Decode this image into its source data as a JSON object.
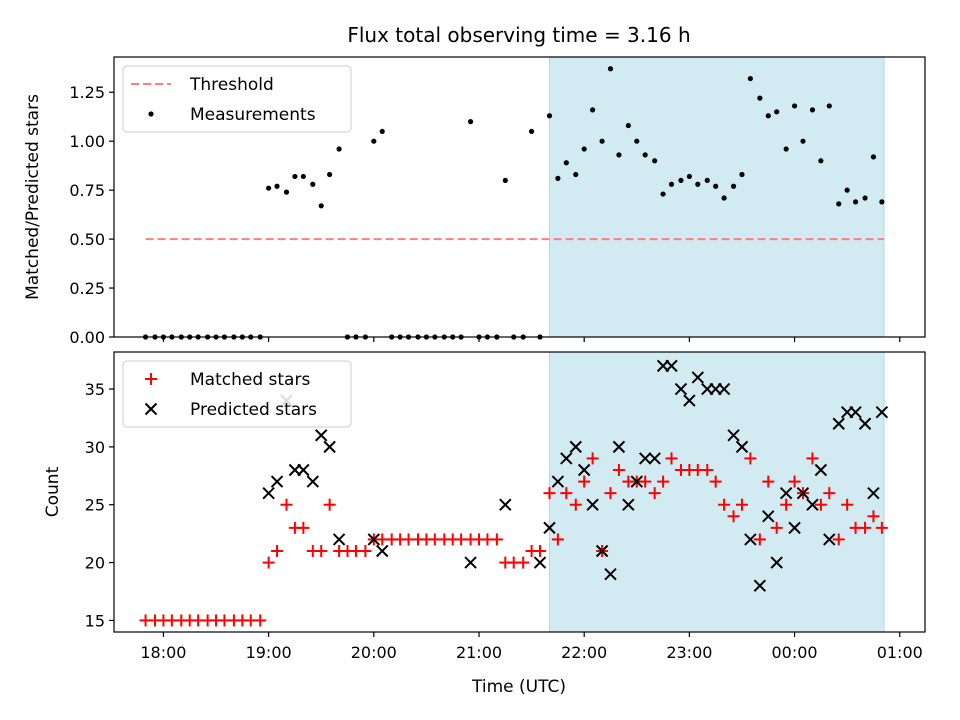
{
  "title": "Flux total observing time = 3.16 h",
  "xlabel": "Time (UTC)",
  "x_ticks": [
    "18:00",
    "19:00",
    "20:00",
    "21:00",
    "22:00",
    "23:00",
    "00:00",
    "01:00"
  ],
  "shaded_interval": {
    "start": 21.67,
    "end": 24.85,
    "color": "#add8e6"
  },
  "chart_data": [
    {
      "type": "scatter",
      "ylabel": "Matched/Predicted stars",
      "ylim": [
        0,
        1.43
      ],
      "yticks": [
        "0.00",
        "0.25",
        "0.50",
        "0.75",
        "1.00",
        "1.25"
      ],
      "legend": {
        "placement": "top-left",
        "entries": [
          "Threshold",
          "Measurements"
        ]
      },
      "threshold": {
        "name": "Threshold",
        "y": 0.5,
        "x_start": 17.83,
        "x_end": 24.85,
        "color": "#ff7f7f"
      },
      "series": [
        {
          "name": "Measurements",
          "color": "#000000",
          "points": [
            [
              17.83,
              0
            ],
            [
              17.92,
              0
            ],
            [
              18.0,
              0
            ],
            [
              18.08,
              0
            ],
            [
              18.17,
              0
            ],
            [
              18.25,
              0
            ],
            [
              18.33,
              0
            ],
            [
              18.42,
              0
            ],
            [
              18.5,
              0
            ],
            [
              18.58,
              0
            ],
            [
              18.67,
              0
            ],
            [
              18.75,
              0
            ],
            [
              18.83,
              0
            ],
            [
              18.92,
              0
            ],
            [
              19.0,
              0.76
            ],
            [
              19.08,
              0.77
            ],
            [
              19.17,
              0.74
            ],
            [
              19.25,
              0.82
            ],
            [
              19.33,
              0.82
            ],
            [
              19.42,
              0.78
            ],
            [
              19.5,
              0.67
            ],
            [
              19.58,
              0.83
            ],
            [
              19.67,
              0.96
            ],
            [
              19.75,
              0
            ],
            [
              19.83,
              0
            ],
            [
              19.92,
              0
            ],
            [
              20.0,
              1.0
            ],
            [
              20.08,
              1.05
            ],
            [
              20.17,
              0
            ],
            [
              20.25,
              0
            ],
            [
              20.33,
              0
            ],
            [
              20.42,
              0
            ],
            [
              20.5,
              0
            ],
            [
              20.58,
              0
            ],
            [
              20.67,
              0
            ],
            [
              20.75,
              0
            ],
            [
              20.83,
              0
            ],
            [
              20.92,
              1.1
            ],
            [
              21.0,
              0
            ],
            [
              21.08,
              0
            ],
            [
              21.17,
              0
            ],
            [
              21.25,
              0.8
            ],
            [
              21.33,
              0
            ],
            [
              21.42,
              0
            ],
            [
              21.5,
              1.05
            ],
            [
              21.58,
              0
            ],
            [
              21.67,
              1.13
            ],
            [
              21.75,
              0.81
            ],
            [
              21.83,
              0.89
            ],
            [
              21.92,
              0.83
            ],
            [
              22.0,
              0.96
            ],
            [
              22.08,
              1.16
            ],
            [
              22.17,
              1.0
            ],
            [
              22.25,
              1.37
            ],
            [
              22.33,
              0.93
            ],
            [
              22.42,
              1.08
            ],
            [
              22.5,
              1.0
            ],
            [
              22.58,
              0.93
            ],
            [
              22.67,
              0.9
            ],
            [
              22.75,
              0.73
            ],
            [
              22.83,
              0.78
            ],
            [
              22.92,
              0.8
            ],
            [
              23.0,
              0.82
            ],
            [
              23.08,
              0.78
            ],
            [
              23.17,
              0.8
            ],
            [
              23.25,
              0.77
            ],
            [
              23.33,
              0.71
            ],
            [
              23.42,
              0.77
            ],
            [
              23.5,
              0.83
            ],
            [
              23.58,
              1.32
            ],
            [
              23.67,
              1.22
            ],
            [
              23.75,
              1.13
            ],
            [
              23.83,
              1.15
            ],
            [
              23.92,
              0.96
            ],
            [
              24.0,
              1.18
            ],
            [
              24.08,
              1.0
            ],
            [
              24.17,
              1.16
            ],
            [
              24.25,
              0.9
            ],
            [
              24.33,
              1.18
            ],
            [
              24.42,
              0.68
            ],
            [
              24.5,
              0.75
            ],
            [
              24.58,
              0.69
            ],
            [
              24.67,
              0.71
            ],
            [
              24.75,
              0.92
            ],
            [
              24.83,
              0.69
            ]
          ]
        }
      ]
    },
    {
      "type": "scatter",
      "ylabel": "Count",
      "ylim": [
        14,
        38.2
      ],
      "yticks": [
        "15",
        "20",
        "25",
        "30",
        "35"
      ],
      "legend": {
        "placement": "top-left",
        "entries": [
          "Matched stars",
          "Predicted stars"
        ]
      },
      "series": [
        {
          "name": "Matched stars",
          "color": "#ff0000",
          "marker": "plus",
          "points": [
            [
              17.83,
              15
            ],
            [
              17.92,
              15
            ],
            [
              18.0,
              15
            ],
            [
              18.08,
              15
            ],
            [
              18.17,
              15
            ],
            [
              18.25,
              15
            ],
            [
              18.33,
              15
            ],
            [
              18.42,
              15
            ],
            [
              18.5,
              15
            ],
            [
              18.58,
              15
            ],
            [
              18.67,
              15
            ],
            [
              18.75,
              15
            ],
            [
              18.83,
              15
            ],
            [
              18.92,
              15
            ],
            [
              19.0,
              20
            ],
            [
              19.08,
              21
            ],
            [
              19.17,
              25
            ],
            [
              19.25,
              23
            ],
            [
              19.33,
              23
            ],
            [
              19.42,
              21
            ],
            [
              19.5,
              21
            ],
            [
              19.58,
              25
            ],
            [
              19.67,
              21
            ],
            [
              19.75,
              21
            ],
            [
              19.83,
              21
            ],
            [
              19.92,
              21
            ],
            [
              20.0,
              22
            ],
            [
              20.08,
              22
            ],
            [
              20.17,
              22
            ],
            [
              20.25,
              22
            ],
            [
              20.33,
              22
            ],
            [
              20.42,
              22
            ],
            [
              20.5,
              22
            ],
            [
              20.58,
              22
            ],
            [
              20.67,
              22
            ],
            [
              20.75,
              22
            ],
            [
              20.83,
              22
            ],
            [
              20.92,
              22
            ],
            [
              21.0,
              22
            ],
            [
              21.08,
              22
            ],
            [
              21.17,
              22
            ],
            [
              21.25,
              20
            ],
            [
              21.33,
              20
            ],
            [
              21.42,
              20
            ],
            [
              21.5,
              21
            ],
            [
              21.58,
              21
            ],
            [
              21.67,
              26
            ],
            [
              21.75,
              22
            ],
            [
              21.83,
              26
            ],
            [
              21.92,
              25
            ],
            [
              22.0,
              27
            ],
            [
              22.08,
              29
            ],
            [
              22.17,
              21
            ],
            [
              22.25,
              26
            ],
            [
              22.33,
              28
            ],
            [
              22.42,
              27
            ],
            [
              22.5,
              27
            ],
            [
              22.58,
              27
            ],
            [
              22.67,
              26
            ],
            [
              22.75,
              27
            ],
            [
              22.83,
              29
            ],
            [
              22.92,
              28
            ],
            [
              23.0,
              28
            ],
            [
              23.08,
              28
            ],
            [
              23.17,
              28
            ],
            [
              23.25,
              27
            ],
            [
              23.33,
              25
            ],
            [
              23.42,
              24
            ],
            [
              23.5,
              25
            ],
            [
              23.58,
              29
            ],
            [
              23.67,
              22
            ],
            [
              23.75,
              27
            ],
            [
              23.83,
              23
            ],
            [
              23.92,
              25
            ],
            [
              24.0,
              27
            ],
            [
              24.08,
              26
            ],
            [
              24.17,
              29
            ],
            [
              24.25,
              25
            ],
            [
              24.33,
              26
            ],
            [
              24.42,
              22
            ],
            [
              24.5,
              25
            ],
            [
              24.58,
              23
            ],
            [
              24.67,
              23
            ],
            [
              24.75,
              24
            ],
            [
              24.83,
              23
            ]
          ]
        },
        {
          "name": "Predicted stars",
          "color": "#000000",
          "marker": "x",
          "points": [
            [
              19.0,
              26
            ],
            [
              19.08,
              27
            ],
            [
              19.17,
              34
            ],
            [
              19.25,
              28
            ],
            [
              19.33,
              28
            ],
            [
              19.42,
              27
            ],
            [
              19.5,
              31
            ],
            [
              19.58,
              30
            ],
            [
              19.67,
              22
            ],
            [
              20.0,
              22
            ],
            [
              20.08,
              21
            ],
            [
              20.92,
              20
            ],
            [
              21.25,
              25
            ],
            [
              21.58,
              20
            ],
            [
              21.67,
              23
            ],
            [
              21.75,
              27
            ],
            [
              21.83,
              29
            ],
            [
              21.92,
              30
            ],
            [
              22.0,
              28
            ],
            [
              22.08,
              25
            ],
            [
              22.17,
              21
            ],
            [
              22.25,
              19
            ],
            [
              22.33,
              30
            ],
            [
              22.42,
              25
            ],
            [
              22.5,
              27
            ],
            [
              22.58,
              29
            ],
            [
              22.67,
              29
            ],
            [
              22.75,
              37
            ],
            [
              22.83,
              37
            ],
            [
              22.92,
              35
            ],
            [
              23.0,
              34
            ],
            [
              23.08,
              36
            ],
            [
              23.17,
              35
            ],
            [
              23.25,
              35
            ],
            [
              23.33,
              35
            ],
            [
              23.42,
              31
            ],
            [
              23.5,
              30
            ],
            [
              23.58,
              22
            ],
            [
              23.67,
              18
            ],
            [
              23.75,
              24
            ],
            [
              23.83,
              20
            ],
            [
              23.92,
              26
            ],
            [
              24.0,
              23
            ],
            [
              24.08,
              26
            ],
            [
              24.17,
              25
            ],
            [
              24.25,
              28
            ],
            [
              24.33,
              22
            ],
            [
              24.42,
              32
            ],
            [
              24.5,
              33
            ],
            [
              24.58,
              33
            ],
            [
              24.67,
              32
            ],
            [
              24.75,
              26
            ],
            [
              24.83,
              33
            ]
          ]
        }
      ]
    }
  ]
}
